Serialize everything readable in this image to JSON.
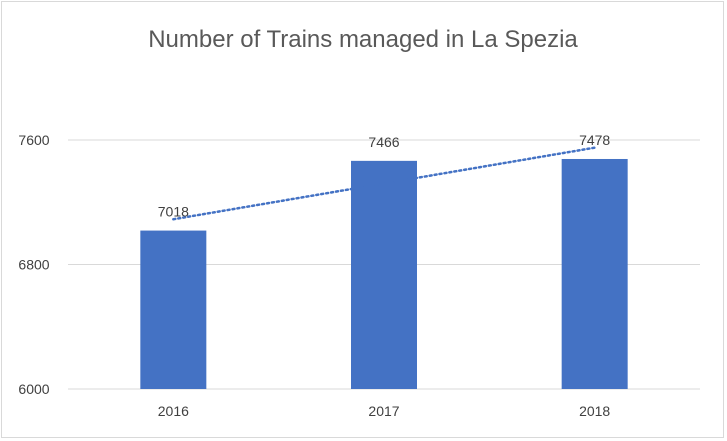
{
  "chart_data": {
    "type": "bar",
    "title": "Number of Trains managed in La Spezia",
    "categories": [
      "2016",
      "2017",
      "2018"
    ],
    "values": [
      7018,
      7466,
      7478
    ],
    "data_labels": [
      "7018",
      "7466",
      "7478"
    ],
    "xlabel": "",
    "ylabel": "",
    "ylim": [
      6000,
      7600
    ],
    "yticks": [
      6000,
      6800,
      7600
    ],
    "ytick_labels": [
      "6000",
      "6800",
      "7600"
    ],
    "grid": true,
    "trendline": "linear dotted",
    "legend": "none",
    "colors": {
      "bar": "#4472c4",
      "trendline": "#4472c4",
      "grid": "#d9d9d9",
      "text": "#595959"
    }
  }
}
